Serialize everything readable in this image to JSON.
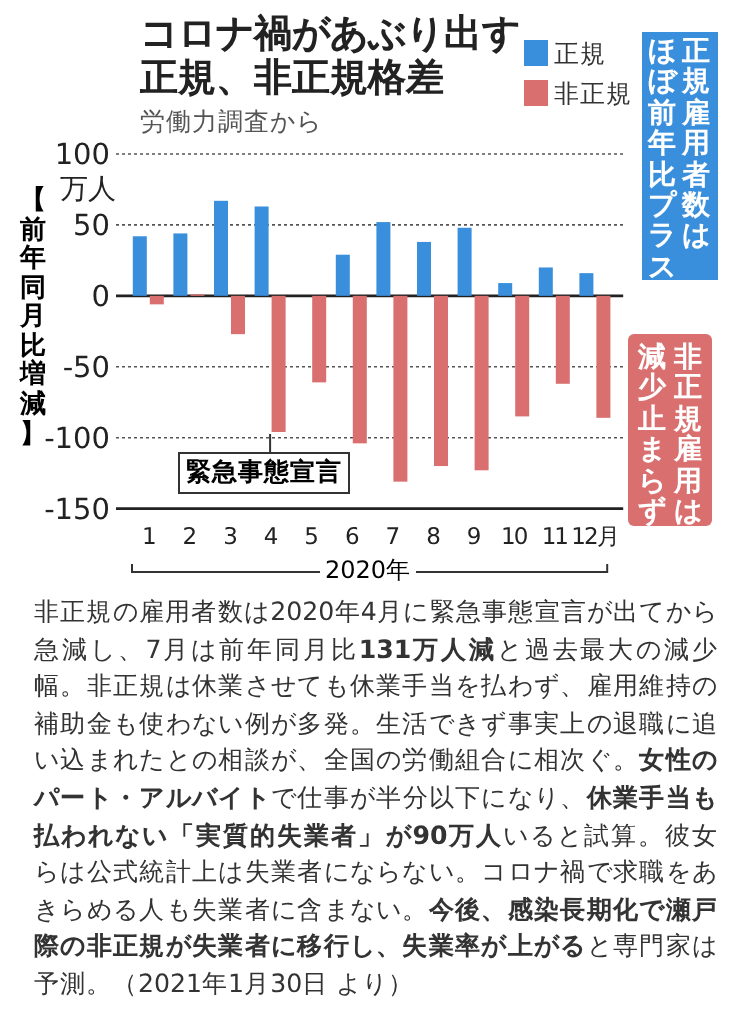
{
  "chart_data": {
    "type": "bar",
    "title": "コロナ禍があぶり出す正規、非正規格差",
    "subtitle": "労働力調査から",
    "ylabel": "【前年同月比増減】",
    "xlabel": "2020年",
    "categories": [
      "1",
      "2",
      "3",
      "4",
      "5",
      "6",
      "7",
      "8",
      "9",
      "10",
      "11",
      "12月"
    ],
    "series": [
      {
        "name": "正規",
        "color": "#3a8fdc",
        "values": [
          42,
          44,
          67,
          63,
          0,
          29,
          52,
          38,
          48,
          9,
          20,
          16
        ]
      },
      {
        "name": "非正規",
        "color": "#d9706f",
        "values": [
          -6,
          1,
          -27,
          -96,
          -61,
          -104,
          -131,
          -120,
          -123,
          -85,
          -62,
          -86
        ]
      }
    ],
    "ylim": [
      -150,
      100
    ],
    "yticks": [
      -150,
      -100,
      -50,
      0,
      50,
      100
    ],
    "grid": "y",
    "legend": "top right",
    "annotations": [
      "万人",
      {
        "text": "緊急事態宣言",
        "x": "4",
        "y": -96
      },
      "正規雇用者数は",
      "ほぼ前年比プラス",
      "非正規雇用は",
      "減少止まらず",
      "非正規の雇用者数は2020年4月に緊急事態宣言が出てから急減し、7月は前年同月比**131万人減**と過去最大の減少幅。非正規は休業させても休業手当を払わず、雇用維持の補助金も使わない例が多発。生活できず事実上の退職に追い込まれたとの相談が、全国の労働組合に相次ぐ。**女性のパート・アルバイト**で仕事が半分以下になり、**休業手当も払われない「実質的失業者」が90万人**いると試算。彼女らは公式統計上は失業者にならない。コロナ禍で求職をあきらめる人も失業者に含まない。**今後、感染長期化で瀬戸際の非正規が失業者に移行し、失業率が上がる**と専門家は予測。（2021年1月30日 より）"
    ]
  }
}
